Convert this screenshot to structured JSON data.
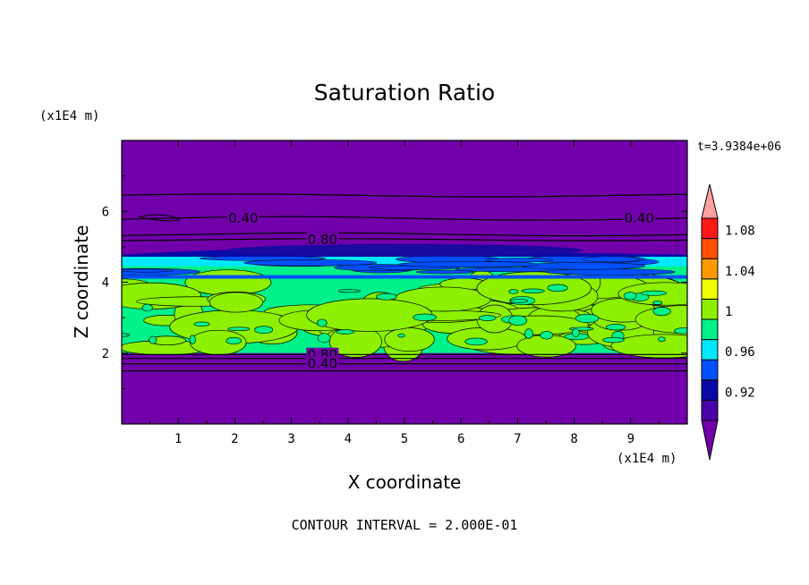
{
  "chart_data": {
    "type": "heatmap",
    "title": "Saturation Ratio",
    "xlabel": "X coordinate",
    "ylabel": "Z coordinate",
    "x_unit": "(x1E4 m)",
    "y_unit": "(x1E4 m)",
    "time_label": "t=3.9384e+06",
    "footer": "CONTOUR INTERVAL = 2.000E-01",
    "xlim": [
      0,
      10
    ],
    "ylim": [
      0,
      8
    ],
    "x_ticks": [
      "1",
      "2",
      "3",
      "4",
      "5",
      "6",
      "7",
      "8",
      "9"
    ],
    "y_ticks": [
      "2",
      "4",
      "6"
    ],
    "colorbar": {
      "labels": [
        "0.92",
        "0.96",
        "1",
        "1.04",
        "1.08"
      ],
      "levels": [
        0.9,
        0.92,
        0.94,
        0.96,
        0.98,
        1.0,
        1.02,
        1.04,
        1.06,
        1.08,
        1.1
      ],
      "colors": [
        "#7200aa",
        "#4a00aa",
        "#0a0aa8",
        "#0050ff",
        "#00e8ff",
        "#00f08a",
        "#8cf000",
        "#f0ff00",
        "#ff9900",
        "#ff5000",
        "#ff1a1a",
        "#ffa0a0"
      ]
    },
    "contour_labels": [
      {
        "text": "0.40",
        "x": 2.15,
        "y": 5.8
      },
      {
        "text": "0.80",
        "x": 3.55,
        "y": 5.2
      },
      {
        "text": "0.40",
        "x": 9.15,
        "y": 5.8
      },
      {
        "text": "0.80",
        "x": 3.55,
        "y": 1.95
      },
      {
        "text": "0.40",
        "x": 3.55,
        "y": 1.7
      }
    ]
  }
}
